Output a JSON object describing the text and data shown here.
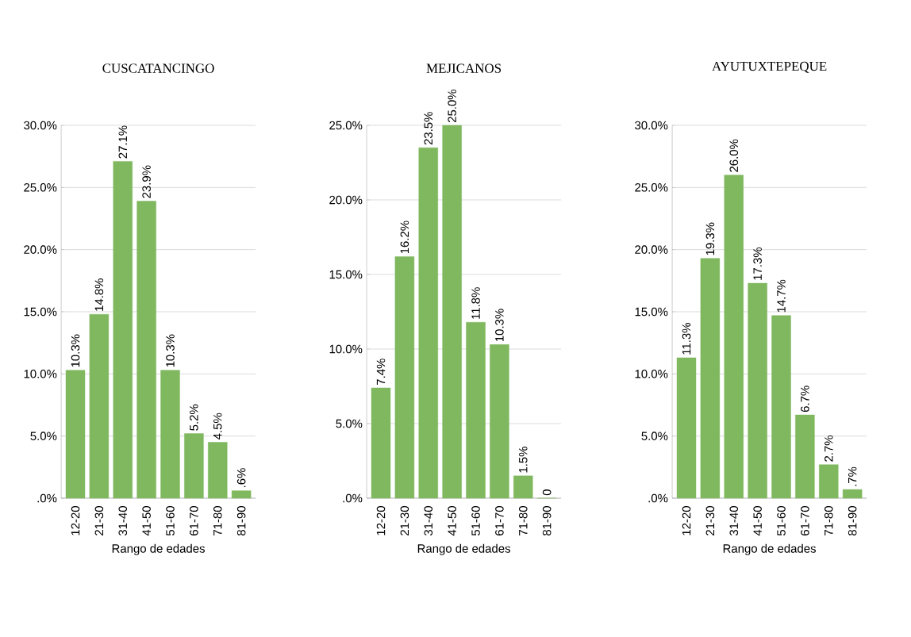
{
  "chart_data": [
    {
      "type": "bar",
      "title": "CUSCATANCINGO",
      "xlabel": "Rango de edades",
      "categories": [
        "12-20",
        "21-30",
        "31-40",
        "41-50",
        "51-60",
        "61-70",
        "71-80",
        "81-90"
      ],
      "values": [
        10.3,
        14.8,
        27.1,
        23.9,
        10.3,
        5.2,
        4.5,
        0.6
      ],
      "value_labels": [
        "10.3%",
        "14.8%",
        "27.1%",
        "23.9%",
        "10.3%",
        "5.2%",
        "4.5%",
        ".6%"
      ],
      "color": "#7fb85e",
      "ylim": [
        0,
        30
      ],
      "yticks": [
        {
          "value": 0,
          "label": ".0%"
        },
        {
          "value": 5,
          "label": "5.0%"
        },
        {
          "value": 10,
          "label": "10.0%"
        },
        {
          "value": 15,
          "label": "15.0%"
        },
        {
          "value": 20,
          "label": "20.0%"
        },
        {
          "value": 25,
          "label": "25.0%"
        },
        {
          "value": 30,
          "label": "30.0%"
        }
      ],
      "grid": "y"
    },
    {
      "type": "bar",
      "title": "MEJICANOS",
      "xlabel": "Rango de edades",
      "categories": [
        "12-20",
        "21-30",
        "31-40",
        "41-50",
        "51-60",
        "61-70",
        "71-80",
        "81-90"
      ],
      "values": [
        7.4,
        16.2,
        23.5,
        25.0,
        11.8,
        10.3,
        1.5,
        0
      ],
      "value_labels": [
        "7.4%",
        "16.2%",
        "23.5%",
        "25.0%",
        "11.8%",
        "10.3%",
        "1.5%",
        "0"
      ],
      "color": "#7fb85e",
      "ylim": [
        0,
        25
      ],
      "yticks": [
        {
          "value": 0,
          "label": ".0%"
        },
        {
          "value": 5,
          "label": "5.0%"
        },
        {
          "value": 10,
          "label": "10.0%"
        },
        {
          "value": 15,
          "label": "15.0%"
        },
        {
          "value": 20,
          "label": "20.0%"
        },
        {
          "value": 25,
          "label": "25.0%"
        }
      ],
      "grid": "y"
    },
    {
      "type": "bar",
      "title": "AYUTUXTEPEQUE",
      "xlabel": "Rango de edades",
      "categories": [
        "12-20",
        "21-30",
        "31-40",
        "41-50",
        "51-60",
        "61-70",
        "71-80",
        "81-90"
      ],
      "values": [
        11.3,
        19.3,
        26.0,
        17.3,
        14.7,
        6.7,
        2.7,
        0.7
      ],
      "value_labels": [
        "11.3%",
        "19.3%",
        "26.0%",
        "17.3%",
        "14.7%",
        "6.7%",
        "2.7%",
        ".7%"
      ],
      "color": "#7fb85e",
      "ylim": [
        0,
        30
      ],
      "yticks": [
        {
          "value": 0,
          "label": ".0%"
        },
        {
          "value": 5,
          "label": "5.0%"
        },
        {
          "value": 10,
          "label": "10.0%"
        },
        {
          "value": 15,
          "label": "15.0%"
        },
        {
          "value": 20,
          "label": "20.0%"
        },
        {
          "value": 25,
          "label": "25.0%"
        },
        {
          "value": 30,
          "label": "30.0%"
        }
      ],
      "grid": "y"
    }
  ]
}
